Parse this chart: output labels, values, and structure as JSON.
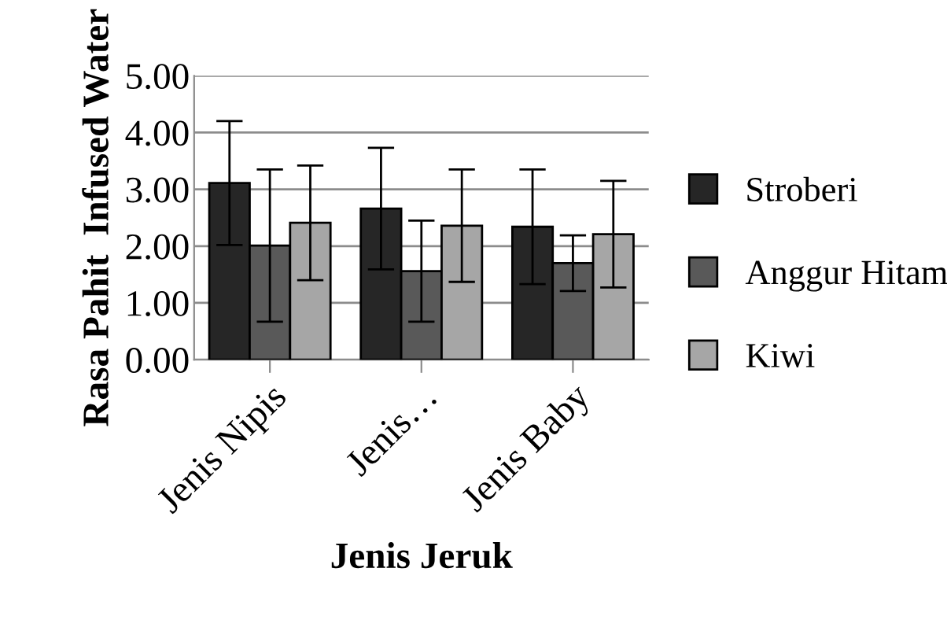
{
  "chart_data": {
    "type": "bar",
    "xlabel": "Jenis Jeruk",
    "ylabel": "Rasa Pahit  Infused Water",
    "categories": [
      "Jenis Nipis",
      "Jenis…",
      "Jenis Baby"
    ],
    "series": [
      {
        "name": "Stroberi",
        "color": "#262626",
        "values": [
          3.11,
          2.66,
          2.34
        ],
        "errors": [
          1.09,
          1.07,
          1.01
        ]
      },
      {
        "name": "Anggur Hitam",
        "color": "#595959",
        "values": [
          2.01,
          1.56,
          1.7
        ],
        "errors": [
          1.34,
          0.89,
          0.49
        ]
      },
      {
        "name": "Kiwi",
        "color": "#a6a6a6",
        "values": [
          2.41,
          2.36,
          2.21
        ],
        "errors": [
          1.01,
          0.99,
          0.94
        ]
      }
    ],
    "ylim": [
      0,
      5
    ],
    "yticks": [
      {
        "value": 0,
        "label": "0.00"
      },
      {
        "value": 1,
        "label": "1.00"
      },
      {
        "value": 2,
        "label": "2.00"
      },
      {
        "value": 3,
        "label": "3.00"
      },
      {
        "value": 4,
        "label": "4.00"
      },
      {
        "value": 5,
        "label": "5.00"
      }
    ],
    "grid": "y",
    "legend": "right"
  }
}
